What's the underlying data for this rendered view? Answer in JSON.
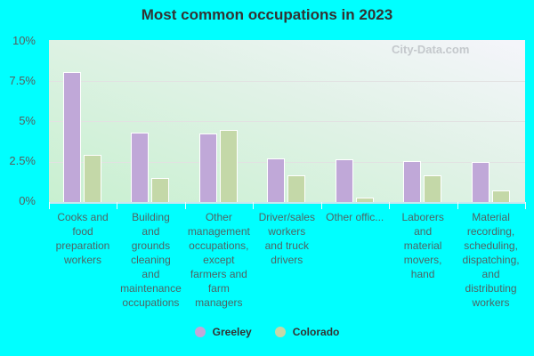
{
  "chart_data": {
    "type": "bar",
    "title": "Most common occupations in 2023",
    "xlabel": "",
    "ylabel": "",
    "ylim": [
      0,
      10
    ],
    "yticks": [
      "0%",
      "2.5%",
      "5%",
      "7.5%",
      "10%"
    ],
    "grid": true,
    "legend_position": "bottom",
    "categories": [
      "Cooks and food preparation workers",
      "Building and grounds cleaning and maintenance occupations",
      "Other management occupations, except farmers and farm managers",
      "Driver/sales workers and truck drivers",
      "Other offic...",
      "Laborers and material movers, hand",
      "Material recording, scheduling, dispatching, and distributing workers"
    ],
    "series": [
      {
        "name": "Greeley",
        "color": "#c0a8d8",
        "values": [
          8.0,
          4.3,
          4.25,
          2.7,
          2.65,
          2.55,
          2.5
        ]
      },
      {
        "name": "Colorado",
        "color": "#c4d8a8",
        "values": [
          2.9,
          1.5,
          4.45,
          1.65,
          0.25,
          1.65,
          0.7
        ]
      }
    ],
    "watermark": "City-Data.com"
  },
  "title": "Most common occupations in 2023",
  "yticks": [
    "10%",
    "7.5%",
    "5%",
    "2.5%",
    "0%"
  ],
  "xlabels": [
    "Cooks and\nfood\npreparation\nworkers",
    "Building\nand\ngrounds\ncleaning\nand\nmaintenance\noccupations",
    "Other\nmanagement\noccupations,\nexcept\nfarmers and\nfarm\nmanagers",
    "Driver/sales\nworkers\nand truck\ndrivers",
    "Other offic...",
    "Laborers\nand\nmaterial\nmovers,\nhand",
    "Material\nrecording,\nscheduling,\ndispatching,\nand\ndistributing\nworkers"
  ],
  "legend": [
    {
      "label": "Greeley",
      "color": "#c0a8d8"
    },
    {
      "label": "Colorado",
      "color": "#c4d8a8"
    }
  ],
  "watermark": "City-Data.com"
}
